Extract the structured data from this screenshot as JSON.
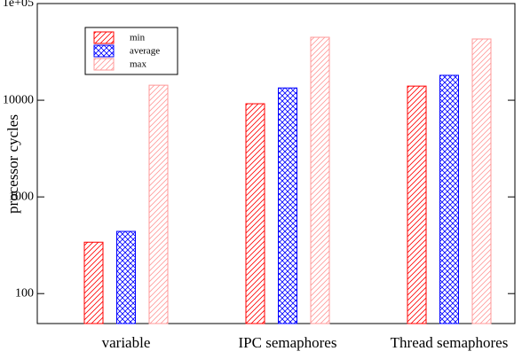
{
  "chart_data": {
    "type": "bar",
    "ylabel": "processor cycles",
    "categories": [
      "variable",
      "IPC semaphores",
      "Thread semaphores"
    ],
    "series": [
      {
        "name": "min",
        "color": "#ff0000",
        "hatch": "diagonal",
        "values": [
          340,
          9200,
          14000
        ]
      },
      {
        "name": "average",
        "color": "#0000ff",
        "hatch": "cross",
        "values": [
          440,
          13400,
          18100
        ]
      },
      {
        "name": "max",
        "color": "#ff9999",
        "hatch": "diagonal",
        "values": [
          14300,
          44800,
          43000
        ]
      }
    ],
    "ylim": [
      49,
      100000
    ],
    "yticks": [
      100,
      1000,
      10000,
      {
        "value": 100000,
        "label": "1e+05"
      }
    ],
    "log_y": true,
    "legend": "upper left"
  }
}
